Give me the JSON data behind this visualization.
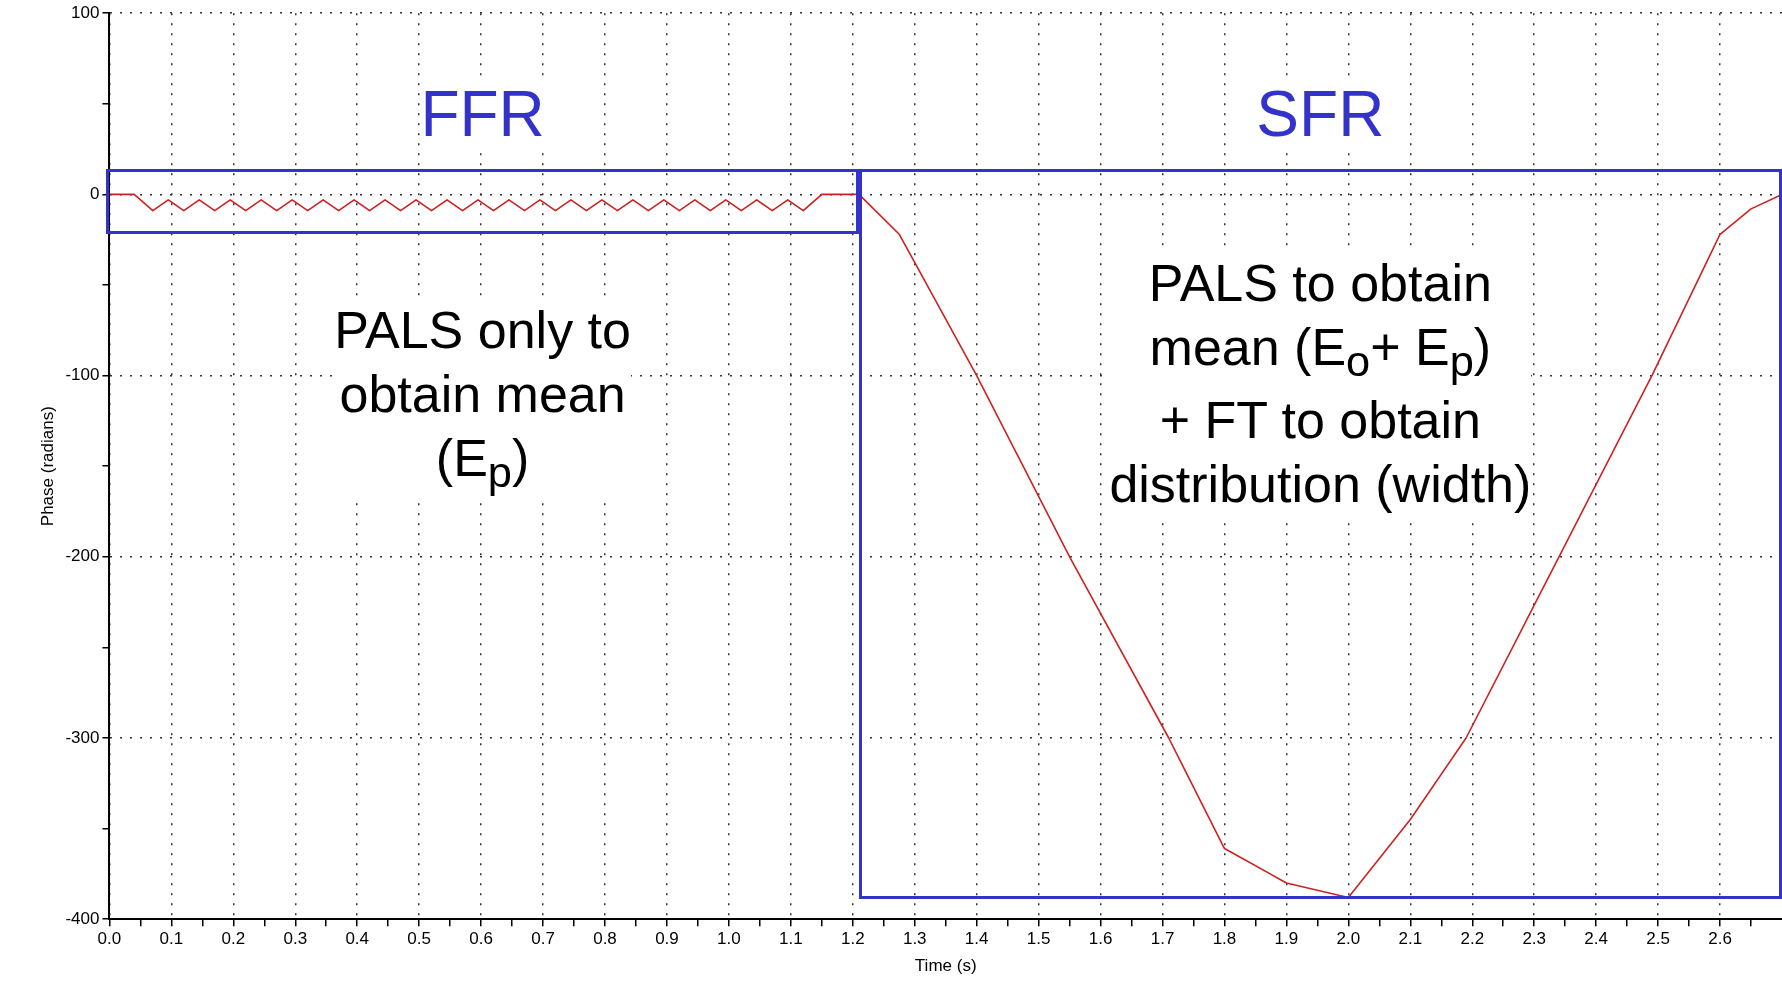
{
  "chart_data": {
    "type": "line",
    "xlabel": "Time (s)",
    "ylabel": "Phase (radians)",
    "xlim": [
      0,
      2.7
    ],
    "ylim": [
      -400,
      100
    ],
    "xticks": [
      {
        "value": 0,
        "label": "0.0"
      },
      {
        "value": 0.05,
        "label": null
      },
      {
        "value": 0.1,
        "label": "0.1"
      },
      {
        "value": 0.15,
        "label": null
      },
      {
        "value": 0.2,
        "label": "0.2"
      },
      {
        "value": 0.25,
        "label": null
      },
      {
        "value": 0.3,
        "label": "0.3"
      },
      {
        "value": 0.35,
        "label": null
      },
      {
        "value": 0.4,
        "label": "0.4"
      },
      {
        "value": 0.45,
        "label": null
      },
      {
        "value": 0.5,
        "label": "0.5"
      },
      {
        "value": 0.55,
        "label": null
      },
      {
        "value": 0.6,
        "label": "0.6"
      },
      {
        "value": 0.65,
        "label": null
      },
      {
        "value": 0.7,
        "label": "0.7"
      },
      {
        "value": 0.75,
        "label": null
      },
      {
        "value": 0.8,
        "label": "0.8"
      },
      {
        "value": 0.85,
        "label": null
      },
      {
        "value": 0.9,
        "label": "0.9"
      },
      {
        "value": 0.95,
        "label": null
      },
      {
        "value": 1,
        "label": "1.0"
      },
      {
        "value": 1.05,
        "label": null
      },
      {
        "value": 1.1,
        "label": "1.1"
      },
      {
        "value": 1.15,
        "label": null
      },
      {
        "value": 1.2,
        "label": "1.2"
      },
      {
        "value": 1.25,
        "label": null
      },
      {
        "value": 1.3,
        "label": "1.3"
      },
      {
        "value": 1.35,
        "label": null
      },
      {
        "value": 1.4,
        "label": "1.4"
      },
      {
        "value": 1.45,
        "label": null
      },
      {
        "value": 1.5,
        "label": "1.5"
      },
      {
        "value": 1.55,
        "label": null
      },
      {
        "value": 1.6,
        "label": "1.6"
      },
      {
        "value": 1.65,
        "label": null
      },
      {
        "value": 1.7,
        "label": "1.7"
      },
      {
        "value": 1.75,
        "label": null
      },
      {
        "value": 1.8,
        "label": "1.8"
      },
      {
        "value": 1.85,
        "label": null
      },
      {
        "value": 1.9,
        "label": "1.9"
      },
      {
        "value": 1.95,
        "label": null
      },
      {
        "value": 2,
        "label": "2.0"
      },
      {
        "value": 2.05,
        "label": null
      },
      {
        "value": 2.1,
        "label": "2.1"
      },
      {
        "value": 2.15,
        "label": null
      },
      {
        "value": 2.2,
        "label": "2.2"
      },
      {
        "value": 2.25,
        "label": null
      },
      {
        "value": 2.3,
        "label": "2.3"
      },
      {
        "value": 2.35,
        "label": null
      },
      {
        "value": 2.4,
        "label": "2.4"
      },
      {
        "value": 2.45,
        "label": null
      },
      {
        "value": 2.5,
        "label": "2.5"
      },
      {
        "value": 2.55,
        "label": null
      },
      {
        "value": 2.6,
        "label": "2.6"
      },
      {
        "value": 2.65,
        "label": null
      }
    ],
    "yticks": [
      -400,
      {
        "value": -350,
        "label": null
      },
      -300,
      {
        "value": -250,
        "label": null
      },
      -200,
      {
        "value": -150,
        "label": null
      },
      -100,
      {
        "value": -50,
        "label": null
      },
      0,
      {
        "value": 50,
        "label": null
      },
      100
    ],
    "grid": true,
    "marker": "none",
    "line_style": "solid",
    "series": [
      {
        "color": "#cc2222",
        "x": [
          0,
          0.04,
          0.07,
          0.095,
          0.12,
          0.145,
          0.17,
          0.195,
          0.22,
          0.245,
          0.27,
          0.295,
          0.32,
          0.345,
          0.37,
          0.395,
          0.42,
          0.445,
          0.47,
          0.495,
          0.52,
          0.545,
          0.57,
          0.595,
          0.62,
          0.645,
          0.67,
          0.695,
          0.72,
          0.745,
          0.77,
          0.795,
          0.82,
          0.845,
          0.87,
          0.895,
          0.92,
          0.945,
          0.97,
          0.995,
          1.02,
          1.045,
          1.07,
          1.095,
          1.12,
          1.15,
          1.2,
          1.21,
          1.275,
          1.4,
          1.55,
          1.71,
          1.8,
          1.9,
          2.0,
          2.1,
          2.19,
          2.34,
          2.49,
          2.6,
          2.65,
          2.7
        ],
        "values": [
          0,
          0,
          -9,
          -3,
          -9,
          -3,
          -9,
          -3,
          -9,
          -3,
          -9,
          -3,
          -9,
          -3,
          -9,
          -3,
          -9,
          -3,
          -9,
          -3,
          -9,
          -3,
          -9,
          -3,
          -9,
          -3,
          -9,
          -3,
          -9,
          -3,
          -9,
          -3,
          -9,
          -3,
          -9,
          -3,
          -9,
          -3,
          -9,
          -3,
          -9,
          -3,
          -9,
          -3,
          -9,
          0,
          0,
          0,
          -22,
          -100,
          -200,
          -300,
          -361,
          -380,
          -388,
          -345,
          -300,
          -200,
          -100,
          -22,
          -8,
          0
        ]
      }
    ],
    "annotations": [
      "FFR",
      "SFR",
      "PALS only to\nobtain mean\n(E$_{p}$)",
      "PALS to obtain\nmean (E$_{o}$+ E$_{p}$)\n+ FT to obtain\ndistribution (width)"
    ]
  }
}
